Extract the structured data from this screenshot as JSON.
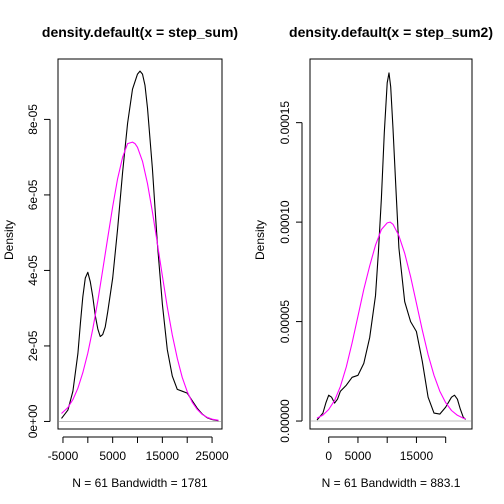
{
  "chart_data": [
    {
      "type": "line",
      "title": "density.default(x = step_sum)",
      "xlabel": "N = 61   Bandwidth = 1781",
      "ylabel": "Density",
      "xlim": [
        -6000,
        27000
      ],
      "ylim": [
        -2e-06,
        9.6e-05
      ],
      "xticks": [
        -5000,
        0,
        5000,
        10000,
        15000,
        20000,
        25000
      ],
      "xtick_labels": [
        "-5000",
        "",
        "5000",
        "",
        "15000",
        "",
        "25000"
      ],
      "yticks": [
        0,
        2e-05,
        4e-05,
        6e-05,
        8e-05
      ],
      "ytick_labels": [
        "0e+00",
        "2e-05",
        "4e-05",
        "6e-05",
        "8e-05"
      ],
      "zero_line": true,
      "series": [
        {
          "color": "#000000",
          "x": [
            -5300,
            -4000,
            -3000,
            -2000,
            -1500,
            -1000,
            -500,
            0,
            500,
            1000,
            1500,
            2000,
            2500,
            3000,
            3500,
            4000,
            5000,
            6000,
            7000,
            8000,
            9000,
            10000,
            10500,
            11000,
            11500,
            12000,
            13000,
            14000,
            15000,
            16000,
            17000,
            18000,
            19000,
            20000,
            21000,
            22000,
            23000,
            24000,
            25000,
            26300
          ],
          "y": [
            8e-07,
            3e-06,
            8e-06,
            1.8e-05,
            2.6e-05,
            3.3e-05,
            3.8e-05,
            3.95e-05,
            3.7e-05,
            3.3e-05,
            2.8e-05,
            2.45e-05,
            2.25e-05,
            2.3e-05,
            2.5e-05,
            2.9e-05,
            3.8e-05,
            5.1e-05,
            6.6e-05,
            7.9e-05,
            8.8e-05,
            9.2e-05,
            9.28e-05,
            9.2e-05,
            8.9e-05,
            8.3e-05,
            6.7e-05,
            4.7e-05,
            3.1e-05,
            1.9e-05,
            1.2e-05,
            8.5e-06,
            8e-06,
            7.5e-06,
            5.5e-06,
            3.5e-06,
            2e-06,
            1e-06,
            5e-07,
            2e-07
          ]
        },
        {
          "color": "#ff00ff",
          "x": [
            -5300,
            -4000,
            -3000,
            -2000,
            -1000,
            0,
            1000,
            2000,
            3000,
            4000,
            5000,
            6000,
            7000,
            8000,
            9000,
            9500,
            10000,
            11000,
            12000,
            13000,
            14000,
            15000,
            16000,
            17000,
            18000,
            19000,
            20000,
            21000,
            22000,
            23000,
            24000,
            25000,
            26300
          ],
          "y": [
            2.1e-06,
            3.7e-06,
            5.8e-06,
            8.8e-06,
            1.29e-05,
            1.81e-05,
            2.45e-05,
            3.19e-05,
            4.01e-05,
            4.86e-05,
            5.69e-05,
            6.43e-05,
            7e-05,
            7.36e-05,
            7.4e-05,
            7.36e-05,
            7.26e-05,
            6.89e-05,
            6.3e-05,
            5.55e-05,
            4.71e-05,
            3.85e-05,
            3.03e-05,
            2.29e-05,
            1.67e-05,
            1.17e-05,
            7.9e-06,
            5.1e-06,
            3.2e-06,
            1.9e-06,
            1.1e-06,
            6e-07,
            3e-07
          ]
        }
      ]
    },
    {
      "type": "line",
      "title": "density.default(x = step_sum2)",
      "xlabel": "N = 61   Bandwidth = 883.1",
      "ylabel": "Density",
      "xlim": [
        -3200,
        24500
      ],
      "ylim": [
        -4e-06,
        0.000182
      ],
      "xticks": [
        0,
        5000,
        10000,
        15000,
        20000
      ],
      "xtick_labels": [
        "0",
        "5000",
        "",
        "15000",
        ""
      ],
      "yticks": [
        0,
        5e-05,
        0.0001,
        0.00015
      ],
      "ytick_labels": [
        "0.00000",
        "0.00005",
        "0.00010",
        "0.00015"
      ],
      "zero_line": true,
      "series": [
        {
          "color": "#000000",
          "x": [
            -2000,
            -1000,
            -500,
            0,
            500,
            1000,
            1500,
            2000,
            3000,
            4000,
            5000,
            6000,
            7000,
            8000,
            8500,
            9000,
            9500,
            10000,
            10300,
            10600,
            11000,
            11500,
            12000,
            13000,
            14000,
            15000,
            16000,
            17000,
            18000,
            19000,
            20000,
            21000,
            21500,
            22000,
            22500,
            23000,
            23400
          ],
          "y": [
            5e-07,
            4e-06,
            9e-06,
            1.3e-05,
            1.2e-05,
            9e-06,
            1.1e-05,
            1.5e-05,
            1.8e-05,
            2.2e-05,
            2.3e-05,
            2.9e-05,
            4.2e-05,
            6.3e-05,
            8.5e-05,
            0.000112,
            0.000145,
            0.00017,
            0.000175,
            0.000168,
            0.000147,
            0.000116,
            8.7e-05,
            6e-05,
            5e-05,
            4.5e-05,
            3e-05,
            1.2e-05,
            4e-06,
            3.5e-06,
            7e-06,
            1.2e-05,
            1.3e-05,
            1.1e-05,
            6e-06,
            2e-06,
            8e-07
          ]
        },
        {
          "color": "#ff00ff",
          "x": [
            -2000,
            -1000,
            0,
            1000,
            2000,
            3000,
            4000,
            5000,
            6000,
            7000,
            8000,
            9000,
            10000,
            10500,
            11000,
            12000,
            13000,
            14000,
            15000,
            16000,
            17000,
            18000,
            19000,
            20000,
            21000,
            22000,
            23000,
            23400
          ],
          "y": [
            1.5e-06,
            3e-06,
            5.8e-06,
            1.04e-05,
            1.74e-05,
            2.72e-05,
            3.93e-05,
            5.28e-05,
            6.62e-05,
            7.8e-05,
            8.84e-05,
            9.63e-05,
            9.96e-05,
            0.0001,
            9.89e-05,
            9.31e-05,
            8.43e-05,
            7.26e-05,
            5.93e-05,
            4.57e-05,
            3.34e-05,
            2.3e-05,
            1.5e-05,
            9.2e-06,
            5.3e-06,
            2.9e-06,
            1.5e-06,
            1.1e-06
          ]
        }
      ]
    }
  ]
}
